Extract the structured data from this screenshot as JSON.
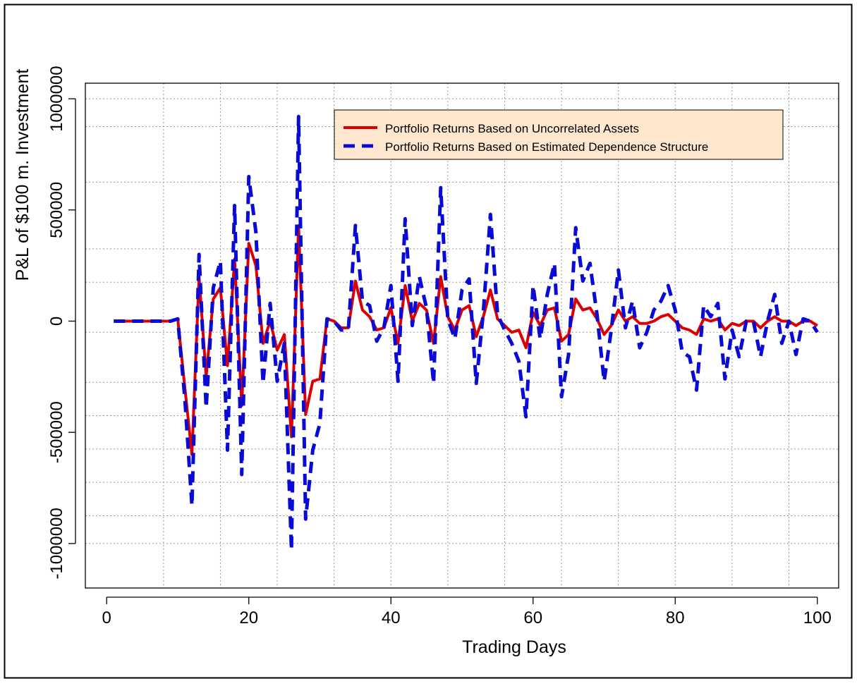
{
  "chart_data": {
    "type": "line",
    "title": "",
    "xlabel": "Trading Days",
    "ylabel": "P&L of $100 m. Investment",
    "xlim": [
      -3,
      103
    ],
    "ylim": [
      -1200000,
      1070000
    ],
    "x_ticks": [
      0,
      20,
      40,
      60,
      80,
      100
    ],
    "x_tick_labels": [
      "0",
      "20",
      "40",
      "60",
      "80",
      "100"
    ],
    "y_ticks": [
      -1000000,
      -500000,
      0,
      500000,
      1000000
    ],
    "y_tick_labels": [
      "-1000000",
      "-500000",
      "0",
      "500000",
      "1000000"
    ],
    "grid": true,
    "grid_x": [
      8,
      16,
      24,
      32,
      40,
      48,
      56,
      64,
      72,
      80,
      88,
      96
    ],
    "grid_y": [
      -1000000,
      -875000,
      -725000,
      -575000,
      -425000,
      -275000,
      -50000,
      175000,
      325000,
      625000,
      875000,
      1000000
    ],
    "legend_position": "top-right",
    "series": [
      {
        "name": "Portfolio Returns Based on Uncorrelated Assets",
        "color": "#dd0000",
        "dash": "solid",
        "x": [
          1,
          2,
          3,
          4,
          5,
          6,
          7,
          8,
          9,
          10,
          11,
          12,
          13,
          14,
          15,
          16,
          17,
          18,
          19,
          20,
          21,
          22,
          23,
          24,
          25,
          26,
          27,
          28,
          29,
          30,
          31,
          32,
          33,
          34,
          35,
          36,
          37,
          38,
          39,
          40,
          41,
          42,
          43,
          44,
          45,
          46,
          47,
          48,
          49,
          50,
          51,
          52,
          53,
          54,
          55,
          56,
          57,
          58,
          59,
          60,
          61,
          62,
          63,
          64,
          65,
          66,
          67,
          68,
          69,
          70,
          71,
          72,
          73,
          74,
          75,
          76,
          77,
          78,
          79,
          80,
          81,
          82,
          83,
          84,
          85,
          86,
          87,
          88,
          89,
          90,
          91,
          92,
          93,
          94,
          95,
          96,
          97,
          98,
          99,
          100
        ],
        "values": [
          0,
          0,
          0,
          0,
          0,
          0,
          0,
          0,
          0,
          10000,
          -300000,
          -600000,
          200000,
          -250000,
          100000,
          150000,
          -200000,
          280000,
          -380000,
          350000,
          250000,
          -100000,
          0,
          -130000,
          -60000,
          -520000,
          430000,
          -420000,
          -270000,
          -260000,
          10000,
          0,
          -30000,
          -30000,
          180000,
          50000,
          20000,
          -40000,
          -30000,
          60000,
          -100000,
          160000,
          0,
          80000,
          50000,
          -100000,
          200000,
          20000,
          -40000,
          50000,
          70000,
          -70000,
          20000,
          140000,
          10000,
          -20000,
          -50000,
          -40000,
          -120000,
          40000,
          -20000,
          50000,
          60000,
          -90000,
          -60000,
          100000,
          50000,
          60000,
          10000,
          -60000,
          -20000,
          50000,
          0,
          20000,
          -10000,
          -10000,
          0,
          20000,
          30000,
          0,
          -30000,
          -40000,
          -60000,
          10000,
          0,
          10000,
          -40000,
          -10000,
          -20000,
          0,
          0,
          -30000,
          0,
          20000,
          0,
          0,
          -20000,
          0,
          0,
          -20000
        ],
        "width": 4
      },
      {
        "name": "Portfolio Returns Based on Estimated Dependence Structure",
        "color": "#0a0ad6",
        "dash": "dashed",
        "x": [
          1,
          2,
          3,
          4,
          5,
          6,
          7,
          8,
          9,
          10,
          11,
          12,
          13,
          14,
          15,
          16,
          17,
          18,
          19,
          20,
          21,
          22,
          23,
          24,
          25,
          26,
          27,
          28,
          29,
          30,
          31,
          32,
          33,
          34,
          35,
          36,
          37,
          38,
          39,
          40,
          41,
          42,
          43,
          44,
          45,
          46,
          47,
          48,
          49,
          50,
          51,
          52,
          53,
          54,
          55,
          56,
          57,
          58,
          59,
          60,
          61,
          62,
          63,
          64,
          65,
          66,
          67,
          68,
          69,
          70,
          71,
          72,
          73,
          74,
          75,
          76,
          77,
          78,
          79,
          80,
          81,
          82,
          83,
          84,
          85,
          86,
          87,
          88,
          89,
          90,
          91,
          92,
          93,
          94,
          95,
          96,
          97,
          98,
          99,
          100
        ],
        "values": [
          0,
          0,
          0,
          0,
          0,
          0,
          0,
          0,
          0,
          10000,
          -350000,
          -830000,
          300000,
          -390000,
          150000,
          270000,
          -580000,
          520000,
          -690000,
          650000,
          400000,
          -280000,
          80000,
          -270000,
          -100000,
          -1030000,
          920000,
          -890000,
          -580000,
          -460000,
          10000,
          0,
          -40000,
          -40000,
          430000,
          90000,
          70000,
          -90000,
          -30000,
          160000,
          -270000,
          460000,
          -20000,
          200000,
          60000,
          -280000,
          600000,
          10000,
          -80000,
          140000,
          190000,
          -280000,
          40000,
          480000,
          30000,
          -40000,
          -100000,
          -180000,
          -430000,
          160000,
          -80000,
          120000,
          260000,
          -340000,
          -150000,
          420000,
          180000,
          260000,
          30000,
          -270000,
          -40000,
          230000,
          -30000,
          90000,
          -120000,
          -50000,
          50000,
          90000,
          160000,
          50000,
          -140000,
          -160000,
          -310000,
          70000,
          20000,
          80000,
          -260000,
          -40000,
          -160000,
          0,
          0,
          -160000,
          0,
          120000,
          -100000,
          0,
          -150000,
          10000,
          0,
          -50000
        ],
        "width": 5
      }
    ]
  }
}
